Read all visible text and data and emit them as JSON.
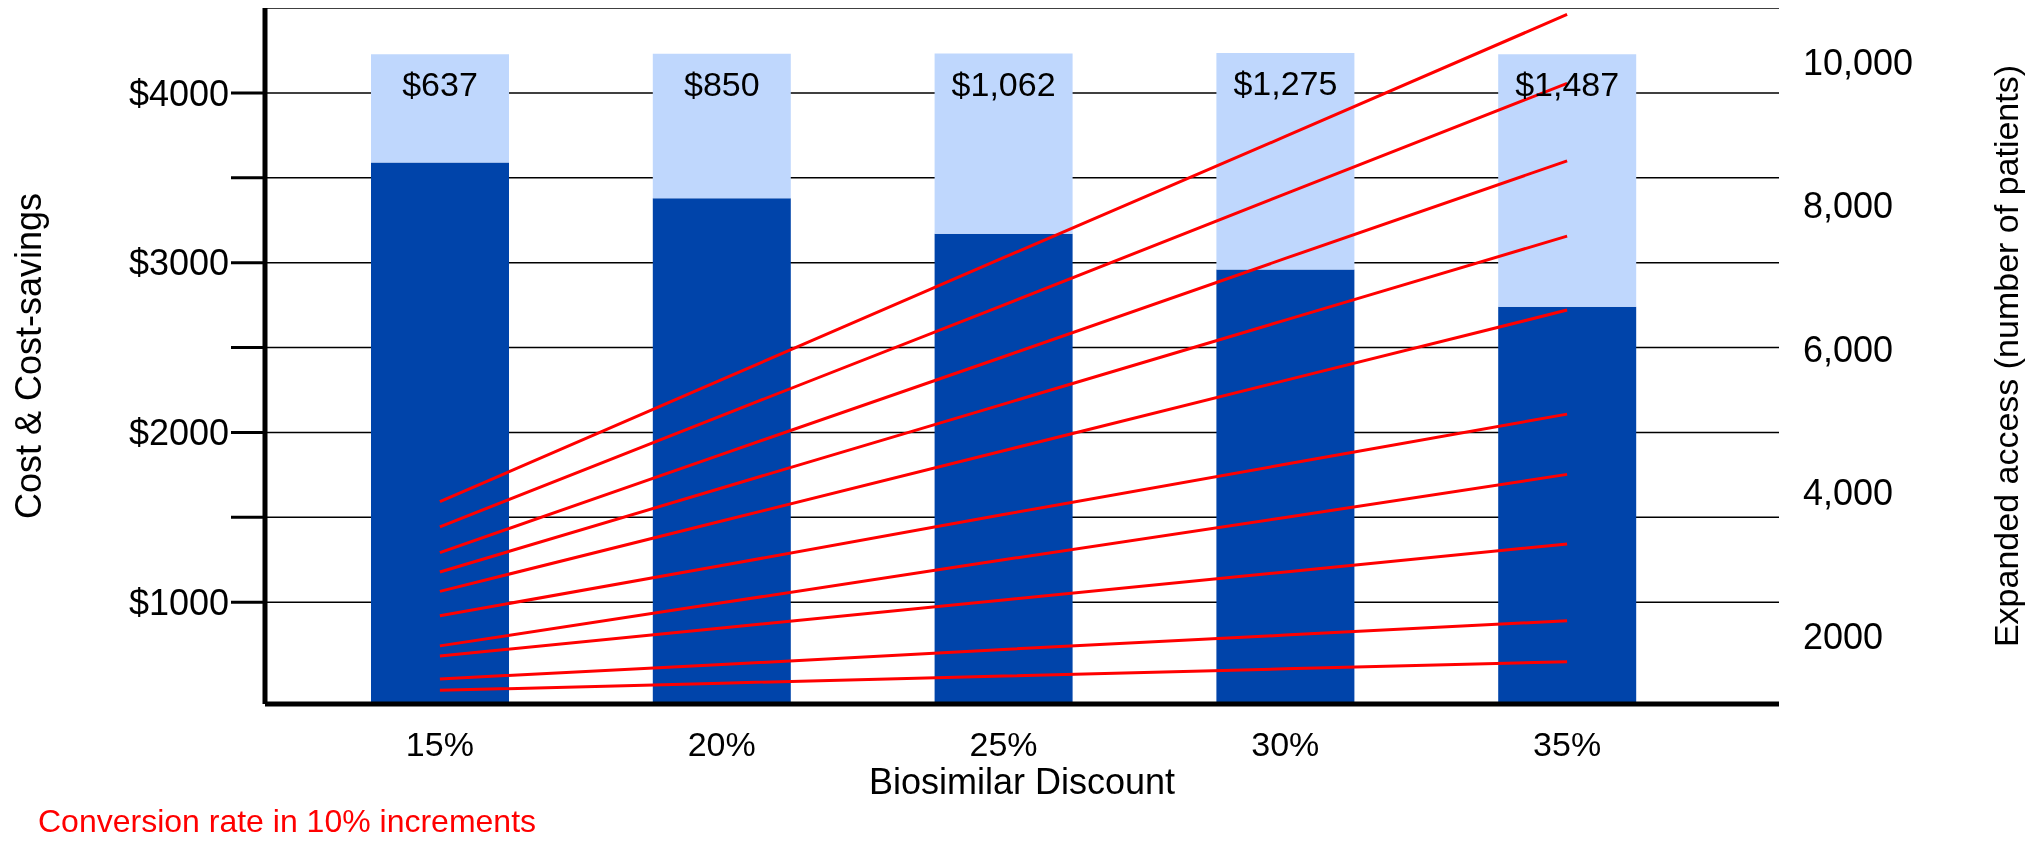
{
  "chart_data": {
    "type": "bar",
    "xlabel": "Biosimilar Discount",
    "ylabel": "Cost & Cost-savings",
    "y2label": "Expanded access (number of patients)",
    "categories": [
      "15%",
      "20%",
      "25%",
      "30%",
      "35%"
    ],
    "stacked": true,
    "grid": "y",
    "marker": "none",
    "line_style": "solid",
    "ylim": [
      400,
      4500
    ],
    "yticks": [
      {
        "value": 1000,
        "label": "$1000"
      },
      {
        "value": 1500,
        "label": null
      },
      {
        "value": 2000,
        "label": "$2000"
      },
      {
        "value": 2500,
        "label": null
      },
      {
        "value": 3000,
        "label": "$3000"
      },
      {
        "value": 3500,
        "label": null
      },
      {
        "value": 4000,
        "label": "$4000"
      }
    ],
    "y2lim": [
      1050,
      10750
    ],
    "y2ticks": [
      {
        "value": 2000,
        "label": "2000"
      },
      {
        "value": 4000,
        "label": "4,000"
      },
      {
        "value": 6000,
        "label": "6,000"
      },
      {
        "value": 8000,
        "label": "8,000"
      },
      {
        "value": 10000,
        "label": "10,000"
      }
    ],
    "series": [
      {
        "color": "#0044aa",
        "values": [
          3590,
          3380,
          3170,
          2960,
          2740
        ]
      },
      {
        "color": "#bfd7fd",
        "values": [
          637,
          850,
          1062,
          1275,
          1487
        ],
        "value_labels": [
          "$637",
          "$850",
          "$1,062",
          "$1,275",
          "$1,487"
        ]
      },
      {
        "type": "line",
        "axis": "y2",
        "color": "#ff0000",
        "values": [
          3870,
          5570,
          7270,
          8960,
          10660
        ]
      },
      {
        "type": "line",
        "axis": "y2",
        "color": "#ff0000",
        "values": [
          3520,
          5070,
          6610,
          8160,
          9700
        ]
      },
      {
        "type": "line",
        "axis": "y2",
        "color": "#ff0000",
        "values": [
          3160,
          4530,
          5890,
          7260,
          8620
        ]
      },
      {
        "type": "line",
        "axis": "y2",
        "color": "#ff0000",
        "values": [
          2890,
          4060,
          5230,
          6400,
          7570
        ]
      },
      {
        "type": "line",
        "axis": "y2",
        "color": "#ff0000",
        "values": [
          2620,
          3600,
          4580,
          5560,
          6540
        ]
      },
      {
        "type": "line",
        "axis": "y2",
        "color": "#ff0000",
        "values": [
          2280,
          2980,
          3690,
          4390,
          5090
        ]
      },
      {
        "type": "line",
        "axis": "y2",
        "color": "#ff0000",
        "values": [
          1860,
          2460,
          3060,
          3650,
          4250
        ]
      },
      {
        "type": "line",
        "axis": "y2",
        "color": "#ff0000",
        "values": [
          1720,
          2110,
          2500,
          2890,
          3280
        ]
      },
      {
        "type": "line",
        "axis": "y2",
        "color": "#ff0000",
        "values": [
          1400,
          1600,
          1810,
          2010,
          2210
        ]
      },
      {
        "type": "line",
        "axis": "y2",
        "color": "#ff0000",
        "values": [
          1240,
          1340,
          1440,
          1540,
          1640
        ]
      }
    ],
    "annotations": [
      "Conversion rate in 10% increments"
    ]
  }
}
